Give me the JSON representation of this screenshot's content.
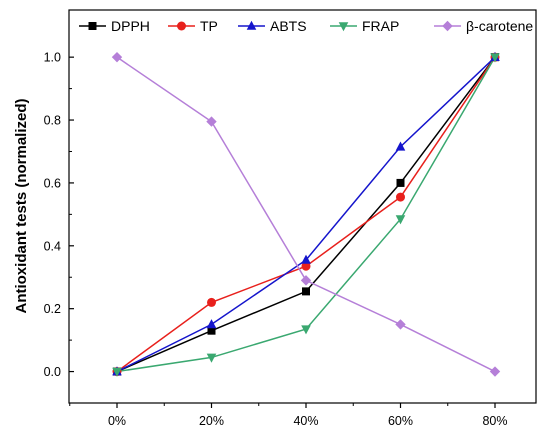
{
  "chart_data": {
    "type": "line",
    "categories": [
      "0%",
      "20%",
      "40%",
      "60%",
      "80%"
    ],
    "xlabel": "",
    "ylabel": "Antioxidant tests (normalized)",
    "ylim": [
      -0.1,
      1.15
    ],
    "yticks": [
      "0.0",
      "0.2",
      "0.4",
      "0.6",
      "0.8",
      "1.0"
    ],
    "grid": false,
    "legend_position": "top",
    "series": [
      {
        "name": "DPPH",
        "color": "#000000",
        "marker": "square",
        "values": [
          0.0,
          0.13,
          0.255,
          0.6,
          1.0
        ]
      },
      {
        "name": "TP",
        "color": "#e8201c",
        "marker": "circle",
        "values": [
          0.0,
          0.22,
          0.335,
          0.555,
          1.0
        ]
      },
      {
        "name": "ABTS",
        "color": "#1515cc",
        "marker": "triangle-up",
        "values": [
          0.0,
          0.15,
          0.355,
          0.715,
          1.0
        ]
      },
      {
        "name": "FRAP",
        "color": "#3aa870",
        "marker": "triangle-down",
        "values": [
          0.0,
          0.045,
          0.135,
          0.485,
          1.0
        ]
      },
      {
        "name": "β-carotene",
        "color": "#b57fd8",
        "marker": "diamond",
        "values": [
          1.0,
          0.795,
          0.29,
          0.15,
          0.0
        ]
      }
    ]
  }
}
